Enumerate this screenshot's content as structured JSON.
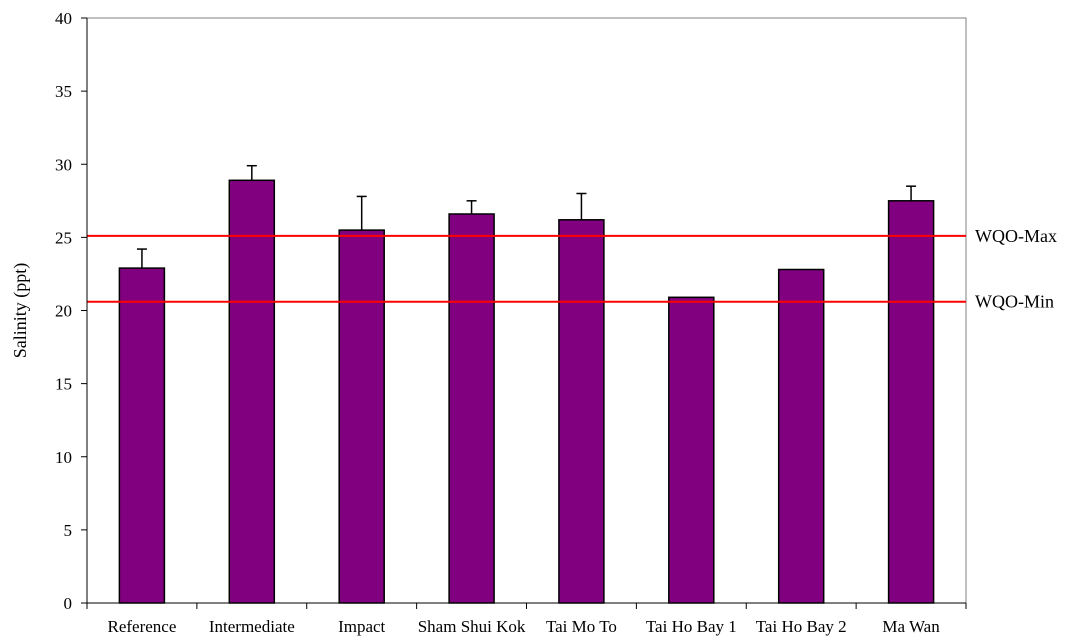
{
  "chart_data": {
    "type": "bar",
    "title": "",
    "xlabel": "",
    "ylabel": "Salinity (ppt)",
    "ylim": [
      0,
      40
    ],
    "yticks": [
      0,
      5,
      10,
      15,
      20,
      25,
      30,
      35,
      40
    ],
    "grid": false,
    "categories": [
      "Reference",
      "Intermediate",
      "Impact",
      "Sham Shui Kok",
      "Tai Mo To",
      "Tai Ho Bay 1",
      "Tai Ho Bay 2",
      "Ma Wan"
    ],
    "values": [
      22.9,
      28.9,
      25.5,
      26.6,
      26.2,
      20.9,
      22.8,
      27.5
    ],
    "error_upper": [
      1.3,
      1.0,
      2.3,
      0.9,
      1.8,
      0.0,
      0.0,
      1.0
    ],
    "bar_color": "#800080",
    "reference_lines": [
      {
        "label": "WQO-Max",
        "value": 25.1,
        "color": "#ff0000"
      },
      {
        "label": "WQO-Min",
        "value": 20.6,
        "color": "#ff0000"
      }
    ]
  }
}
